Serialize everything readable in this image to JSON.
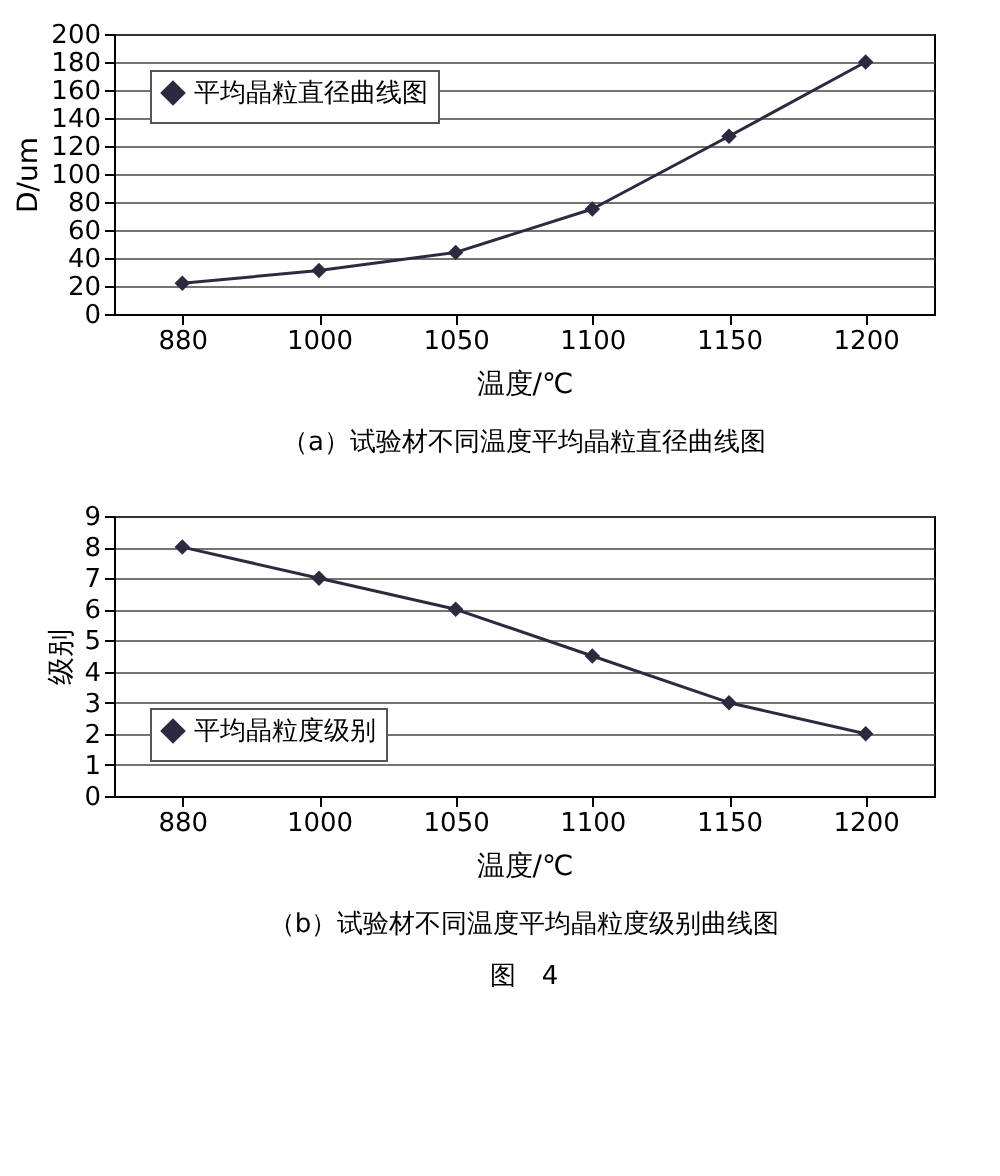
{
  "chart_data": [
    {
      "type": "line",
      "categories": [
        "880",
        "1000",
        "1050",
        "1100",
        "1150",
        "1200"
      ],
      "series": [
        {
          "name": "平均晶粒直径曲线图",
          "color": "#2b2a40",
          "values": [
            22,
            31,
            44,
            75,
            127,
            180
          ]
        }
      ],
      "xlabel": "温度/℃",
      "ylabel": "D/um",
      "ylim": [
        0,
        200
      ],
      "yticks": [
        0,
        20,
        40,
        60,
        80,
        100,
        120,
        140,
        160,
        180,
        200
      ],
      "grid": "y",
      "legend": "top left",
      "marker": "diamond",
      "line_style": "solid",
      "annotations": [
        "（a）试验材不同温度平均晶粒直径曲线图"
      ]
    },
    {
      "type": "line",
      "categories": [
        "880",
        "1000",
        "1050",
        "1100",
        "1150",
        "1200"
      ],
      "series": [
        {
          "name": "平均晶粒度级别",
          "color": "#2b2a40",
          "values": [
            8,
            7,
            6,
            4.5,
            3,
            2
          ]
        }
      ],
      "xlabel": "温度/℃",
      "ylabel": "级别",
      "ylim": [
        0,
        9
      ],
      "yticks": [
        0,
        1,
        2,
        3,
        4,
        5,
        6,
        7,
        8,
        9
      ],
      "grid": "y",
      "legend": "bottom left",
      "marker": "diamond",
      "line_style": "solid",
      "annotations": [
        "（b）试验材不同温度平均晶粒度级别曲线图",
        "图　4"
      ]
    }
  ]
}
